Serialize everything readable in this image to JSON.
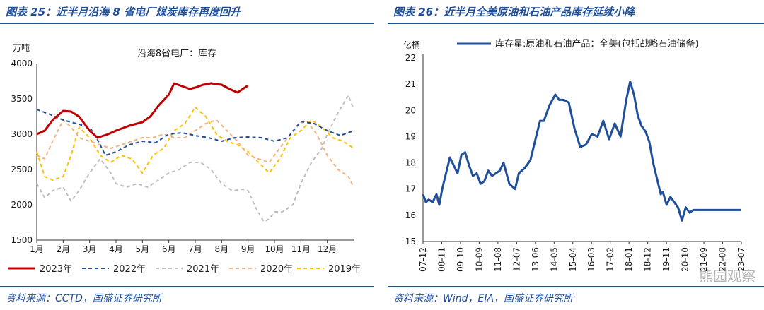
{
  "left": {
    "title": "图表 25：近半月沿海 8 省电厂煤炭库存再度回升",
    "source": "资料来源：CCTD，国盛证券研究所"
  },
  "right": {
    "title": "图表 26：近半月全美原油和石油产品库存延续小降",
    "source": "资料来源：Wind，EIA，国盛证券研究所",
    "watermark": "熊园观察"
  },
  "chart_data": [
    {
      "type": "line",
      "title": "沿海8省电厂：库存",
      "ylabel": "万吨",
      "ylim": [
        1500,
        4000
      ],
      "yticks": [
        1500,
        2000,
        2500,
        3000,
        3500,
        4000
      ],
      "xlim": [
        1,
        13
      ],
      "x_tick_labels": [
        "1月",
        "2月",
        "3月",
        "4月",
        "5月",
        "6月",
        "7月",
        "8月",
        "9月",
        "10月",
        "11月",
        "12月"
      ],
      "legend_position": "bottom",
      "series": [
        {
          "name": "2023年",
          "color": "#c00000",
          "style": "solid",
          "x": [
            1,
            1.3,
            1.6,
            2,
            2.3,
            2.6,
            3,
            3.3,
            3.7,
            4,
            4.5,
            5,
            5.3,
            5.6,
            6,
            6.2,
            6.5,
            6.8,
            7,
            7.3,
            7.6,
            8,
            8.3,
            8.6,
            9
          ],
          "y": [
            3000,
            3050,
            3200,
            3330,
            3320,
            3250,
            3050,
            2950,
            3000,
            3050,
            3120,
            3170,
            3250,
            3400,
            3560,
            3720,
            3680,
            3640,
            3660,
            3700,
            3720,
            3700,
            3640,
            3590,
            3690
          ]
        },
        {
          "name": "2022年",
          "color": "#1f4e9b",
          "style": "dash",
          "x": [
            1,
            1.5,
            2,
            2.5,
            3,
            3.3,
            3.6,
            4,
            4.5,
            5,
            5.5,
            6,
            6.5,
            7,
            7.5,
            8,
            8.5,
            9,
            9.5,
            10,
            10.5,
            11,
            11.5,
            12,
            12.5,
            13
          ],
          "y": [
            3350,
            3280,
            3200,
            3150,
            3100,
            2920,
            2700,
            2750,
            2850,
            2900,
            2880,
            3000,
            3020,
            2980,
            2950,
            2900,
            2950,
            2960,
            2950,
            2900,
            2950,
            3180,
            3150,
            3050,
            2980,
            3050
          ]
        },
        {
          "name": "2021年",
          "color": "#bfbfbf",
          "style": "dash",
          "x": [
            1,
            1.3,
            1.6,
            2,
            2.3,
            2.6,
            3,
            3.4,
            3.8,
            4,
            4.4,
            4.8,
            5.2,
            5.6,
            6,
            6.4,
            6.8,
            7.2,
            7.6,
            8,
            8.4,
            8.8,
            9,
            9.3,
            9.6,
            9.8,
            10,
            10.3,
            10.7,
            11,
            11.4,
            11.8,
            12,
            12.4,
            12.8,
            13
          ],
          "y": [
            2300,
            2100,
            2200,
            2250,
            2050,
            2200,
            2450,
            2650,
            2450,
            2300,
            2250,
            2300,
            2250,
            2350,
            2450,
            2500,
            2600,
            2600,
            2500,
            2300,
            2200,
            2220,
            2200,
            1950,
            1760,
            1800,
            1900,
            1900,
            2000,
            2300,
            2600,
            2800,
            3000,
            3300,
            3550,
            3350
          ]
        },
        {
          "name": "2020年",
          "color": "#f4b183",
          "style": "dash",
          "x": [
            1,
            1.3,
            1.6,
            2,
            2.3,
            2.6,
            3,
            3.4,
            3.8,
            4.2,
            4.6,
            5,
            5.4,
            5.8,
            6.2,
            6.6,
            7,
            7.4,
            7.8,
            8.2,
            8.6,
            9,
            9.4,
            9.8,
            10,
            10.4,
            10.8,
            11.2,
            11.6,
            12,
            12.4,
            12.8,
            13
          ],
          "y": [
            2700,
            2650,
            2900,
            3200,
            3100,
            2950,
            2900,
            2850,
            2800,
            2850,
            2900,
            2950,
            2950,
            3000,
            2950,
            2950,
            3050,
            3150,
            3200,
            3050,
            2900,
            2700,
            2650,
            2600,
            2700,
            2900,
            3100,
            3200,
            3000,
            2700,
            2500,
            2400,
            2250
          ]
        },
        {
          "name": "2019年",
          "color": "#ffc000",
          "style": "dash",
          "x": [
            1,
            1.3,
            1.6,
            2,
            2.3,
            2.6,
            3,
            3.4,
            3.8,
            4.2,
            4.6,
            5,
            5.4,
            5.8,
            6.2,
            6.6,
            7,
            7.4,
            7.8,
            8.2,
            8.6,
            9,
            9.4,
            9.8,
            10.2,
            10.6,
            11,
            11.4,
            11.8,
            12.2,
            12.6,
            13
          ],
          "y": [
            2750,
            2400,
            2350,
            2400,
            2700,
            3100,
            2950,
            2700,
            2600,
            2700,
            2650,
            2450,
            2700,
            2800,
            3050,
            3150,
            3380,
            3250,
            3000,
            2900,
            2850,
            2750,
            2600,
            2450,
            2650,
            2950,
            3050,
            3200,
            3100,
            2950,
            2900,
            2800
          ]
        }
      ]
    },
    {
      "type": "line",
      "ylabel": "亿桶",
      "ylim": [
        15,
        22
      ],
      "yticks": [
        15,
        16,
        17,
        18,
        19,
        20,
        21,
        22
      ],
      "x_tick_labels": [
        "07-12",
        "08-11",
        "09-10",
        "10-09",
        "11-08",
        "12-07",
        "13-06",
        "14-05",
        "15-04",
        "16-03",
        "17-02",
        "18-01",
        "18-12",
        "19-11",
        "20-10",
        "21-09",
        "22-08",
        "23-07"
      ],
      "xlim": [
        0,
        16.6
      ],
      "legend_position": "top-left",
      "series": [
        {
          "name": "库存量:原油和石油产品：全美(包括战略石油储备)",
          "color": "#1f4e9b",
          "style": "solid",
          "x": [
            0,
            0.15,
            0.3,
            0.5,
            0.7,
            0.85,
            1,
            1.2,
            1.4,
            1.6,
            1.8,
            2,
            2.2,
            2.4,
            2.6,
            2.8,
            3,
            3.2,
            3.4,
            3.6,
            3.8,
            4,
            4.2,
            4.5,
            4.8,
            5,
            5.3,
            5.6,
            5.9,
            6.1,
            6.3,
            6.6,
            6.9,
            7.1,
            7.3,
            7.6,
            7.9,
            8.2,
            8.5,
            8.8,
            9.1,
            9.4,
            9.7,
            10,
            10.3,
            10.6,
            10.8,
            11,
            11.2,
            11.4,
            11.6,
            11.8,
            12,
            12.2,
            12.4,
            12.5,
            12.7,
            12.9,
            13.1,
            13.3,
            13.5,
            13.7,
            13.9,
            14.1,
            14.3,
            14.6,
            14.9,
            15.2,
            15.5,
            15.8,
            16.1,
            16.4,
            16.6
          ],
          "y": [
            16.8,
            16.5,
            16.6,
            16.5,
            16.8,
            16.4,
            17.0,
            17.6,
            18.2,
            17.9,
            17.6,
            18.3,
            18.4,
            17.9,
            17.5,
            17.6,
            17.2,
            17.3,
            17.7,
            17.5,
            17.6,
            17.7,
            18.0,
            17.2,
            17.0,
            17.6,
            17.8,
            18.1,
            19.0,
            19.6,
            19.6,
            20.2,
            20.6,
            20.4,
            20.4,
            20.3,
            19.3,
            18.6,
            18.7,
            19.1,
            19.0,
            19.6,
            18.9,
            19.5,
            19.0,
            20.4,
            21.1,
            20.6,
            19.8,
            19.4,
            19.2,
            18.8,
            18.0,
            17.4,
            16.8,
            16.9,
            16.4,
            16.7,
            16.5,
            16.3,
            15.8,
            16.3,
            16.1,
            16.2,
            16.2,
            16.2,
            16.2,
            16.2,
            16.2,
            16.2,
            16.2,
            16.2,
            16.2
          ]
        }
      ]
    }
  ]
}
